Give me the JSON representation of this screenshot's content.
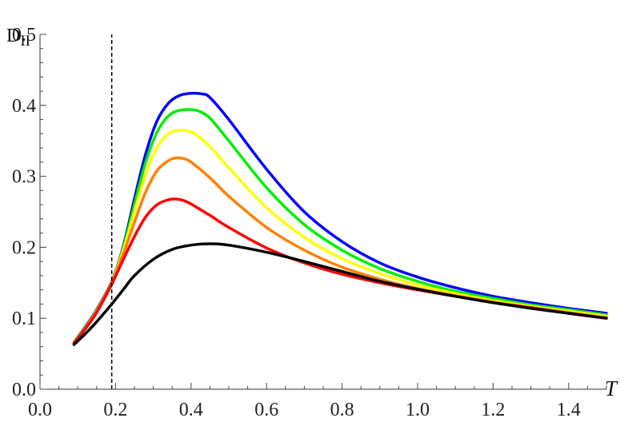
{
  "chart_data": {
    "type": "line",
    "title": "",
    "xlabel": "T",
    "ylabel": "D",
    "ylabel_sub": "II",
    "xlim": [
      0.0,
      1.5
    ],
    "ylim": [
      0.0,
      0.5
    ],
    "xticks": [
      "0.0",
      "0.2",
      "0.4",
      "0.6",
      "0.8",
      "1.0",
      "1.2",
      "1.4"
    ],
    "yticks": [
      "0.0",
      "0.1",
      "0.2",
      "0.3",
      "0.4",
      "0.5"
    ],
    "vline": {
      "x": 0.19,
      "style": "dashed",
      "color": "#000000"
    },
    "series": [
      {
        "color": "#000000",
        "x": [
          0.09,
          0.12,
          0.15,
          0.19,
          0.22,
          0.25,
          0.3,
          0.35,
          0.4,
          0.45,
          0.5,
          0.6,
          0.7,
          0.8,
          0.9,
          1.0,
          1.1,
          1.2,
          1.3,
          1.4,
          1.5
        ],
        "y": [
          0.063,
          0.078,
          0.095,
          0.12,
          0.14,
          0.16,
          0.183,
          0.197,
          0.203,
          0.205,
          0.203,
          0.193,
          0.18,
          0.166,
          0.152,
          0.141,
          0.131,
          0.122,
          0.114,
          0.107,
          0.1
        ]
      },
      {
        "color": "#ff0000",
        "x": [
          0.09,
          0.12,
          0.15,
          0.19,
          0.22,
          0.25,
          0.28,
          0.31,
          0.34,
          0.36,
          0.38,
          0.4,
          0.45,
          0.5,
          0.6,
          0.7,
          0.8,
          0.9,
          1.0,
          1.1,
          1.2,
          1.3,
          1.4,
          1.5
        ],
        "y": [
          0.065,
          0.085,
          0.108,
          0.148,
          0.182,
          0.215,
          0.243,
          0.26,
          0.267,
          0.268,
          0.266,
          0.261,
          0.245,
          0.228,
          0.199,
          0.178,
          0.162,
          0.15,
          0.14,
          0.131,
          0.122,
          0.115,
          0.107,
          0.1
        ]
      },
      {
        "color": "#ff8000",
        "x": [
          0.09,
          0.12,
          0.15,
          0.19,
          0.22,
          0.25,
          0.28,
          0.31,
          0.34,
          0.36,
          0.38,
          0.4,
          0.45,
          0.5,
          0.6,
          0.7,
          0.8,
          0.9,
          1.0,
          1.1,
          1.2,
          1.3,
          1.4,
          1.5
        ],
        "y": [
          0.065,
          0.086,
          0.11,
          0.15,
          0.19,
          0.235,
          0.278,
          0.308,
          0.322,
          0.326,
          0.325,
          0.32,
          0.298,
          0.272,
          0.228,
          0.196,
          0.172,
          0.155,
          0.142,
          0.132,
          0.123,
          0.115,
          0.108,
          0.101
        ]
      },
      {
        "color": "#ffff00",
        "x": [
          0.09,
          0.12,
          0.15,
          0.19,
          0.22,
          0.25,
          0.28,
          0.31,
          0.34,
          0.37,
          0.39,
          0.41,
          0.45,
          0.5,
          0.6,
          0.7,
          0.8,
          0.9,
          1.0,
          1.1,
          1.2,
          1.3,
          1.4,
          1.5
        ],
        "y": [
          0.065,
          0.086,
          0.11,
          0.15,
          0.195,
          0.25,
          0.303,
          0.34,
          0.36,
          0.365,
          0.364,
          0.36,
          0.342,
          0.312,
          0.256,
          0.214,
          0.184,
          0.163,
          0.147,
          0.135,
          0.125,
          0.117,
          0.11,
          0.103
        ]
      },
      {
        "color": "#00ee00",
        "x": [
          0.09,
          0.12,
          0.15,
          0.19,
          0.22,
          0.25,
          0.28,
          0.31,
          0.34,
          0.37,
          0.4,
          0.42,
          0.45,
          0.5,
          0.6,
          0.7,
          0.8,
          0.9,
          1.0,
          1.1,
          1.2,
          1.3,
          1.4,
          1.5
        ],
        "y": [
          0.066,
          0.087,
          0.111,
          0.151,
          0.198,
          0.26,
          0.32,
          0.362,
          0.385,
          0.393,
          0.394,
          0.392,
          0.382,
          0.35,
          0.284,
          0.232,
          0.196,
          0.17,
          0.152,
          0.138,
          0.128,
          0.119,
          0.112,
          0.105
        ]
      },
      {
        "color": "#0000ff",
        "x": [
          0.09,
          0.12,
          0.15,
          0.19,
          0.22,
          0.25,
          0.28,
          0.31,
          0.34,
          0.37,
          0.4,
          0.43,
          0.45,
          0.5,
          0.6,
          0.7,
          0.8,
          0.9,
          1.0,
          1.1,
          1.2,
          1.3,
          1.4,
          1.5
        ],
        "y": [
          0.066,
          0.088,
          0.112,
          0.152,
          0.2,
          0.268,
          0.332,
          0.378,
          0.403,
          0.414,
          0.417,
          0.416,
          0.411,
          0.38,
          0.31,
          0.25,
          0.208,
          0.178,
          0.158,
          0.143,
          0.131,
          0.122,
          0.114,
          0.107
        ]
      }
    ]
  }
}
